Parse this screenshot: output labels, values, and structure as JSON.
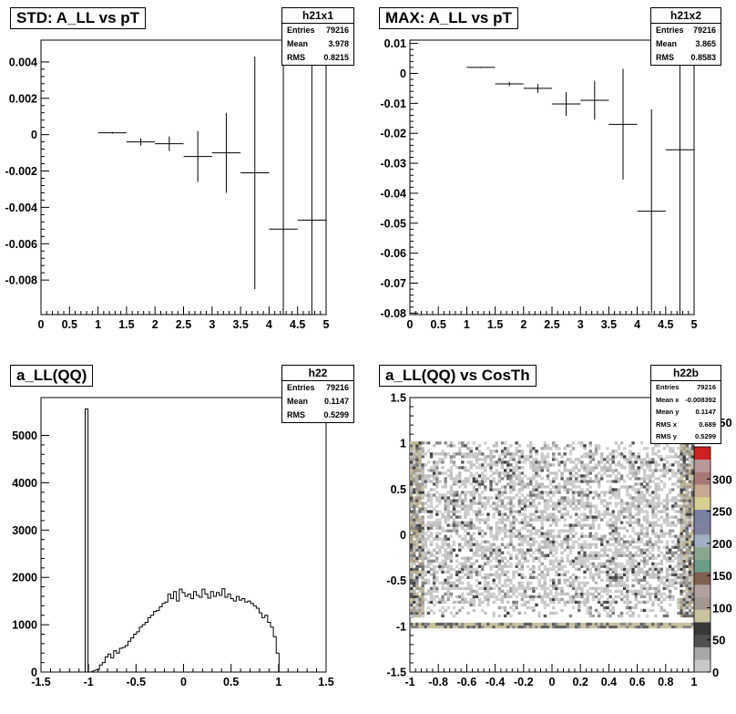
{
  "chart_data": [
    {
      "id": "std",
      "type": "scatter",
      "title": "STD: A_LL vs pT",
      "stats": {
        "name": "h21x1",
        "rows": [
          [
            "Entries",
            "79216"
          ],
          [
            "Mean",
            "3.978"
          ],
          [
            "RMS",
            "0.8215"
          ]
        ]
      },
      "xlim": [
        0,
        5
      ],
      "ylim": [
        -0.0099,
        0.0052
      ],
      "xticks": [
        0,
        0.5,
        1,
        1.5,
        2,
        2.5,
        3,
        3.5,
        4,
        4.5,
        5
      ],
      "xtick_labels": [
        "0",
        "0.5",
        "1",
        "1.5",
        "2",
        "2.5",
        "3",
        "3.5",
        "4",
        "4.5",
        "5"
      ],
      "yticks": [
        -0.008,
        -0.006,
        -0.004,
        -0.002,
        0,
        0.002,
        0.004
      ],
      "ytick_labels": [
        "-0.008",
        "-0.006",
        "-0.004",
        "-0.002",
        "0",
        "0.002",
        "0.004"
      ],
      "points": [
        {
          "x": 1.25,
          "y": 0.0001,
          "err": 5e-05
        },
        {
          "x": 1.75,
          "y": -0.0004,
          "err": 0.0002
        },
        {
          "x": 2.25,
          "y": -0.0005,
          "err": 0.0004
        },
        {
          "x": 2.75,
          "y": -0.0012,
          "err": 0.0014
        },
        {
          "x": 3.25,
          "y": -0.001,
          "err": 0.0022
        },
        {
          "x": 3.75,
          "y": -0.0021,
          "err": 0.0064
        },
        {
          "x": 4.25,
          "y": -0.0052,
          "err": 0.012
        },
        {
          "x": 4.75,
          "y": -0.0047,
          "err": 0.012
        }
      ]
    },
    {
      "id": "max",
      "type": "scatter",
      "title": "MAX: A_LL vs pT",
      "stats": {
        "name": "h21x2",
        "rows": [
          [
            "Entries",
            "79216"
          ],
          [
            "Mean",
            "3.865"
          ],
          [
            "RMS",
            "0.8583"
          ]
        ]
      },
      "xlim": [
        0,
        5
      ],
      "ylim": [
        -0.0805,
        0.0111
      ],
      "xticks": [
        0,
        0.5,
        1,
        1.5,
        2,
        2.5,
        3,
        3.5,
        4,
        4.5,
        5
      ],
      "xtick_labels": [
        "0",
        "0.5",
        "1",
        "1.5",
        "2",
        "2.5",
        "3",
        "3.5",
        "4",
        "4.5",
        "5"
      ],
      "yticks": [
        -0.08,
        -0.07,
        -0.06,
        -0.05,
        -0.04,
        -0.03,
        -0.02,
        -0.01,
        0,
        0.01
      ],
      "ytick_labels": [
        "-0.08",
        "-0.07",
        "-0.06",
        "-0.05",
        "-0.04",
        "-0.03",
        "-0.02",
        "-0.01",
        "0",
        "0.01"
      ],
      "points": [
        {
          "x": 1.25,
          "y": 0.002,
          "err": 0.0002
        },
        {
          "x": 1.75,
          "y": -0.0035,
          "err": 0.0007
        },
        {
          "x": 2.25,
          "y": -0.005,
          "err": 0.0015
        },
        {
          "x": 2.75,
          "y": -0.0102,
          "err": 0.004
        },
        {
          "x": 3.25,
          "y": -0.009,
          "err": 0.0065
        },
        {
          "x": 3.75,
          "y": -0.017,
          "err": 0.0185
        },
        {
          "x": 4.25,
          "y": -0.046,
          "err": 0.034
        },
        {
          "x": 4.75,
          "y": -0.0255,
          "err": 0.06
        }
      ]
    },
    {
      "id": "h22",
      "type": "histogram",
      "title": "a_LL(QQ)",
      "stats": {
        "name": "h22",
        "rows": [
          [
            "Entries",
            "79216"
          ],
          [
            "Mean",
            "0.1147"
          ],
          [
            "RMS",
            "0.5299"
          ]
        ]
      },
      "xlim": [
        -1.5,
        1.5
      ],
      "ylim": [
        0,
        5800
      ],
      "xticks": [
        -1.5,
        -1,
        -0.5,
        0,
        0.5,
        1,
        1.5
      ],
      "xtick_labels": [
        "-1.5",
        "-1",
        "-0.5",
        "0",
        "0.5",
        "1",
        "1.5"
      ],
      "yticks": [
        0,
        1000,
        2000,
        3000,
        4000,
        5000
      ],
      "ytick_labels": [
        "0",
        "1000",
        "2000",
        "3000",
        "4000",
        "5000"
      ],
      "bin_width": 0.03,
      "bins": [
        {
          "x": -1.02,
          "y": 5560
        },
        {
          "x": -0.99,
          "y": 0
        },
        {
          "x": -0.9,
          "y": 50
        },
        {
          "x": -0.87,
          "y": 150
        },
        {
          "x": -0.84,
          "y": 200
        },
        {
          "x": -0.81,
          "y": 320
        },
        {
          "x": -0.78,
          "y": 380
        },
        {
          "x": -0.75,
          "y": 300
        },
        {
          "x": -0.72,
          "y": 450
        },
        {
          "x": -0.69,
          "y": 400
        },
        {
          "x": -0.66,
          "y": 500
        },
        {
          "x": -0.63,
          "y": 520
        },
        {
          "x": -0.6,
          "y": 560
        },
        {
          "x": -0.57,
          "y": 650
        },
        {
          "x": -0.54,
          "y": 720
        },
        {
          "x": -0.51,
          "y": 800
        },
        {
          "x": -0.48,
          "y": 850
        },
        {
          "x": -0.45,
          "y": 950
        },
        {
          "x": -0.42,
          "y": 1000
        },
        {
          "x": -0.39,
          "y": 1050
        },
        {
          "x": -0.36,
          "y": 1150
        },
        {
          "x": -0.33,
          "y": 1200
        },
        {
          "x": -0.3,
          "y": 1280
        },
        {
          "x": -0.27,
          "y": 1300
        },
        {
          "x": -0.24,
          "y": 1380
        },
        {
          "x": -0.21,
          "y": 1450
        },
        {
          "x": -0.18,
          "y": 1480
        },
        {
          "x": -0.15,
          "y": 1650
        },
        {
          "x": -0.12,
          "y": 1550
        },
        {
          "x": -0.09,
          "y": 1700
        },
        {
          "x": -0.06,
          "y": 1500
        },
        {
          "x": -0.03,
          "y": 1750
        },
        {
          "x": 0.0,
          "y": 1680
        },
        {
          "x": 0.03,
          "y": 1600
        },
        {
          "x": 0.06,
          "y": 1650
        },
        {
          "x": 0.09,
          "y": 1550
        },
        {
          "x": 0.12,
          "y": 1700
        },
        {
          "x": 0.15,
          "y": 1620
        },
        {
          "x": 0.18,
          "y": 1580
        },
        {
          "x": 0.21,
          "y": 1750
        },
        {
          "x": 0.24,
          "y": 1650
        },
        {
          "x": 0.27,
          "y": 1560
        },
        {
          "x": 0.3,
          "y": 1700
        },
        {
          "x": 0.33,
          "y": 1600
        },
        {
          "x": 0.36,
          "y": 1680
        },
        {
          "x": 0.39,
          "y": 1620
        },
        {
          "x": 0.42,
          "y": 1760
        },
        {
          "x": 0.45,
          "y": 1580
        },
        {
          "x": 0.48,
          "y": 1650
        },
        {
          "x": 0.51,
          "y": 1550
        },
        {
          "x": 0.54,
          "y": 1500
        },
        {
          "x": 0.57,
          "y": 1600
        },
        {
          "x": 0.6,
          "y": 1520
        },
        {
          "x": 0.63,
          "y": 1550
        },
        {
          "x": 0.66,
          "y": 1480
        },
        {
          "x": 0.69,
          "y": 1500
        },
        {
          "x": 0.72,
          "y": 1450
        },
        {
          "x": 0.75,
          "y": 1400
        },
        {
          "x": 0.78,
          "y": 1350
        },
        {
          "x": 0.81,
          "y": 1250
        },
        {
          "x": 0.84,
          "y": 1150
        },
        {
          "x": 0.87,
          "y": 1200
        },
        {
          "x": 0.9,
          "y": 1050
        },
        {
          "x": 0.93,
          "y": 950
        },
        {
          "x": 0.96,
          "y": 750
        },
        {
          "x": 0.99,
          "y": 400
        },
        {
          "x": 1.02,
          "y": 0
        }
      ]
    },
    {
      "id": "h22b",
      "type": "heatmap",
      "title": "a_LL(QQ) vs CosTh",
      "stats": {
        "name": "h22b",
        "rows": [
          [
            "Entries",
            "79216"
          ],
          [
            "Mean x",
            "-0.008392"
          ],
          [
            "Mean y",
            "0.1147"
          ],
          [
            "RMS x",
            "0.689"
          ],
          [
            "RMS y",
            "0.5299"
          ]
        ]
      },
      "xlim": [
        -1,
        1
      ],
      "ylim": [
        -1.5,
        1.5
      ],
      "xticks": [
        -1,
        -0.8,
        -0.6,
        -0.4,
        -0.2,
        0,
        0.2,
        0.4,
        0.6,
        0.8,
        1
      ],
      "xtick_labels": [
        "-1",
        "-0.8",
        "-0.6",
        "-0.4",
        "-0.2",
        "0",
        "0.2",
        "0.4",
        "0.6",
        "0.8",
        "1"
      ],
      "yticks": [
        -1.5,
        -1,
        -0.5,
        0,
        0.5,
        1,
        1.5
      ],
      "ytick_labels": [
        "-1.5",
        "-1",
        "-0.5",
        "0",
        "0.5",
        "1",
        "1.5"
      ],
      "zticks": [
        0,
        50,
        100,
        150,
        200,
        250,
        300
      ],
      "ztick_labels": [
        "0",
        "50",
        "100",
        "150",
        "200",
        "250",
        "300"
      ],
      "ztop_label": "350",
      "palette": [
        "#c8c8c8",
        "#a8a8a8",
        "#505050",
        "#383838",
        "#c8c4a0",
        "#a09890",
        "#b0a0a0",
        "#806050",
        "#6c9c88",
        "#8aa890",
        "#a0b0c0",
        "#8080a0",
        "#7880a0",
        "#d8d090",
        "#c8a890",
        "#a87878",
        "#b89898",
        "#cc2222"
      ]
    }
  ]
}
